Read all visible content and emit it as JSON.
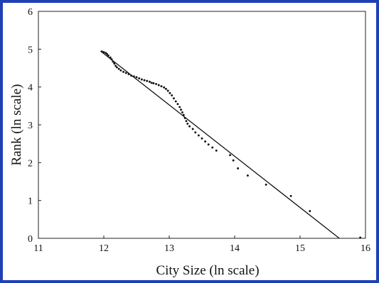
{
  "frame_color": "#1f3fb4",
  "chart_data": {
    "type": "scatter",
    "title": "",
    "xlabel": "City Size (ln scale)",
    "ylabel": "Rank (ln scale)",
    "xlim": [
      11,
      16
    ],
    "ylim": [
      0,
      6
    ],
    "x_ticks": [
      "11",
      "12",
      "13",
      "14",
      "15",
      "16"
    ],
    "y_ticks": [
      "0",
      "1",
      "2",
      "3",
      "4",
      "5",
      "6"
    ],
    "grid": false,
    "legend": "none",
    "series": [
      {
        "type": "scatter",
        "marker_color": "#111111",
        "points": [
          [
            11.97,
            4.94
          ],
          [
            12.0,
            4.92
          ],
          [
            12.03,
            4.9
          ],
          [
            12.05,
            4.87
          ],
          [
            12.07,
            4.83
          ],
          [
            12.1,
            4.78
          ],
          [
            12.12,
            4.73
          ],
          [
            12.14,
            4.67
          ],
          [
            12.16,
            4.62
          ],
          [
            12.18,
            4.56
          ],
          [
            12.2,
            4.52
          ],
          [
            12.23,
            4.48
          ],
          [
            12.26,
            4.44
          ],
          [
            12.3,
            4.4
          ],
          [
            12.34,
            4.37
          ],
          [
            12.38,
            4.34
          ],
          [
            12.42,
            4.3
          ],
          [
            12.46,
            4.28
          ],
          [
            12.5,
            4.26
          ],
          [
            12.54,
            4.23
          ],
          [
            12.58,
            4.2
          ],
          [
            12.62,
            4.18
          ],
          [
            12.66,
            4.16
          ],
          [
            12.7,
            4.14
          ],
          [
            12.73,
            4.11
          ],
          [
            12.76,
            4.1
          ],
          [
            12.8,
            4.08
          ],
          [
            12.84,
            4.05
          ],
          [
            12.88,
            4.02
          ],
          [
            12.92,
            3.99
          ],
          [
            12.95,
            3.95
          ],
          [
            12.98,
            3.9
          ],
          [
            13.01,
            3.84
          ],
          [
            13.04,
            3.78
          ],
          [
            13.07,
            3.7
          ],
          [
            13.1,
            3.62
          ],
          [
            13.13,
            3.55
          ],
          [
            13.16,
            3.47
          ],
          [
            13.18,
            3.4
          ],
          [
            13.2,
            3.33
          ],
          [
            13.22,
            3.26
          ],
          [
            13.24,
            3.18
          ],
          [
            13.26,
            3.1
          ],
          [
            13.28,
            3.03
          ],
          [
            13.31,
            2.96
          ],
          [
            13.36,
            2.89
          ],
          [
            13.4,
            2.8
          ],
          [
            13.45,
            2.72
          ],
          [
            13.5,
            2.64
          ],
          [
            13.55,
            2.56
          ],
          [
            13.6,
            2.48
          ],
          [
            13.66,
            2.4
          ],
          [
            13.72,
            2.32
          ],
          [
            13.93,
            2.2
          ],
          [
            13.98,
            2.06
          ],
          [
            14.05,
            1.85
          ],
          [
            14.2,
            1.66
          ],
          [
            14.48,
            1.42
          ],
          [
            14.86,
            1.12
          ],
          [
            15.15,
            0.72
          ],
          [
            15.92,
            0.02
          ]
        ]
      },
      {
        "type": "line",
        "line_color": "#111111",
        "points": [
          [
            11.95,
            4.95
          ],
          [
            15.6,
            0.0
          ]
        ]
      }
    ]
  }
}
